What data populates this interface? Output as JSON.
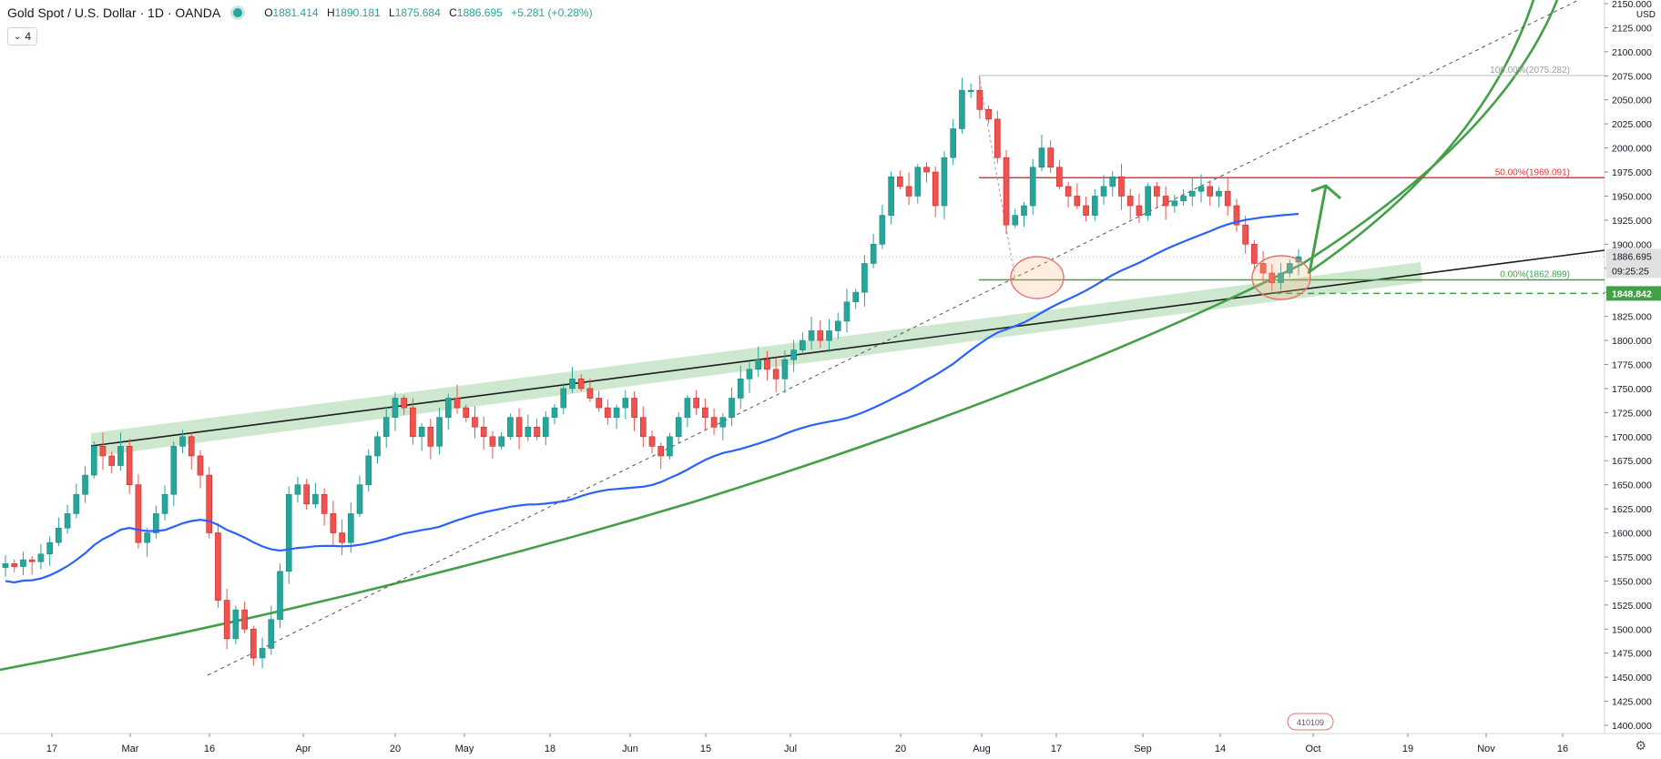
{
  "header": {
    "symbol": "Gold Spot / U.S. Dollar · 1D · OANDA",
    "open_label": "O",
    "open": "1881.414",
    "high_label": "H",
    "high": "1890.181",
    "low_label": "L",
    "low": "1875.684",
    "close_label": "C",
    "close": "1886.695",
    "change": "+5.281 (+0.28%)",
    "indicator_count": "4"
  },
  "price_axis": {
    "unit": "USD",
    "ticks": [
      2150,
      2125,
      2100,
      2075,
      2050,
      2025,
      2000,
      1975,
      1950,
      1925,
      1900,
      1875,
      1850,
      1825,
      1800,
      1775,
      1750,
      1725,
      1700,
      1675,
      1650,
      1625,
      1600,
      1575,
      1550,
      1525,
      1500,
      1475,
      1450,
      1425,
      1400
    ],
    "badges": {
      "last_price": "1886.695",
      "countdown": "09:25:25",
      "level": "1848.842"
    }
  },
  "time_axis": {
    "labels": [
      "17",
      "Mar",
      "16",
      "Apr",
      "20",
      "May",
      "18",
      "Jun",
      "15",
      "Jul",
      "20",
      "Aug",
      "17",
      "Sep",
      "14",
      "Oct",
      "19",
      "Nov",
      "16"
    ]
  },
  "annotations": {
    "fib_100": "100.00%(2075.282)",
    "fib_50": "50.00%(1969.091)",
    "fib_0": "0.00%(1862.899)",
    "flag_badge": "410109"
  },
  "colors": {
    "up": "#26a69a",
    "down": "#ef5350",
    "ma": "#2962ff",
    "green_line": "#43a047",
    "channel_fill": "#a5d6a7",
    "fib_red": "#e53935",
    "trendline": "#1e1e1e",
    "dashed": "#555555"
  },
  "chart_data": {
    "type": "candlestick",
    "instrument": "Gold Spot / U.S. Dollar",
    "interval": "1D",
    "ylim": [
      1400,
      2150
    ],
    "x_labels": [
      "17",
      "Mar",
      "16",
      "Apr",
      "20",
      "May",
      "18",
      "Jun",
      "15",
      "Jul",
      "20",
      "Aug",
      "17",
      "Sep",
      "14",
      "Oct",
      "19",
      "Nov",
      "16"
    ],
    "last": {
      "open": 1881.414,
      "high": 1890.181,
      "low": 1875.684,
      "close": 1886.695
    },
    "levels": {
      "fib_100": 2075.282,
      "fib_50": 1969.091,
      "fib_0": 1862.899,
      "support": 1848.842
    },
    "close_path": [
      1568,
      1565,
      1572,
      1570,
      1578,
      1590,
      1605,
      1620,
      1640,
      1660,
      1690,
      1680,
      1670,
      1690,
      1650,
      1590,
      1600,
      1620,
      1640,
      1690,
      1700,
      1680,
      1660,
      1600,
      1530,
      1490,
      1520,
      1500,
      1470,
      1480,
      1510,
      1560,
      1640,
      1650,
      1630,
      1640,
      1620,
      1600,
      1590,
      1620,
      1650,
      1680,
      1700,
      1720,
      1740,
      1730,
      1700,
      1710,
      1690,
      1720,
      1740,
      1730,
      1720,
      1710,
      1700,
      1690,
      1700,
      1720,
      1700,
      1710,
      1700,
      1720,
      1730,
      1750,
      1760,
      1750,
      1740,
      1730,
      1720,
      1730,
      1740,
      1720,
      1700,
      1690,
      1680,
      1700,
      1720,
      1740,
      1730,
      1720,
      1710,
      1720,
      1740,
      1760,
      1770,
      1780,
      1770,
      1760,
      1780,
      1790,
      1800,
      1810,
      1800,
      1810,
      1820,
      1840,
      1850,
      1880,
      1900,
      1930,
      1970,
      1960,
      1950,
      1980,
      1975,
      1940,
      1990,
      2020,
      2060,
      2060,
      2040,
      2030,
      1990,
      1920,
      1930,
      1940,
      1980,
      2000,
      1980,
      1960,
      1950,
      1940,
      1930,
      1950,
      1960,
      1970,
      1950,
      1940,
      1930,
      1960,
      1950,
      1940,
      1945,
      1950,
      1955,
      1960,
      1950,
      1955,
      1940,
      1920,
      1900,
      1880,
      1870,
      1860,
      1870,
      1880,
      1887
    ]
  }
}
